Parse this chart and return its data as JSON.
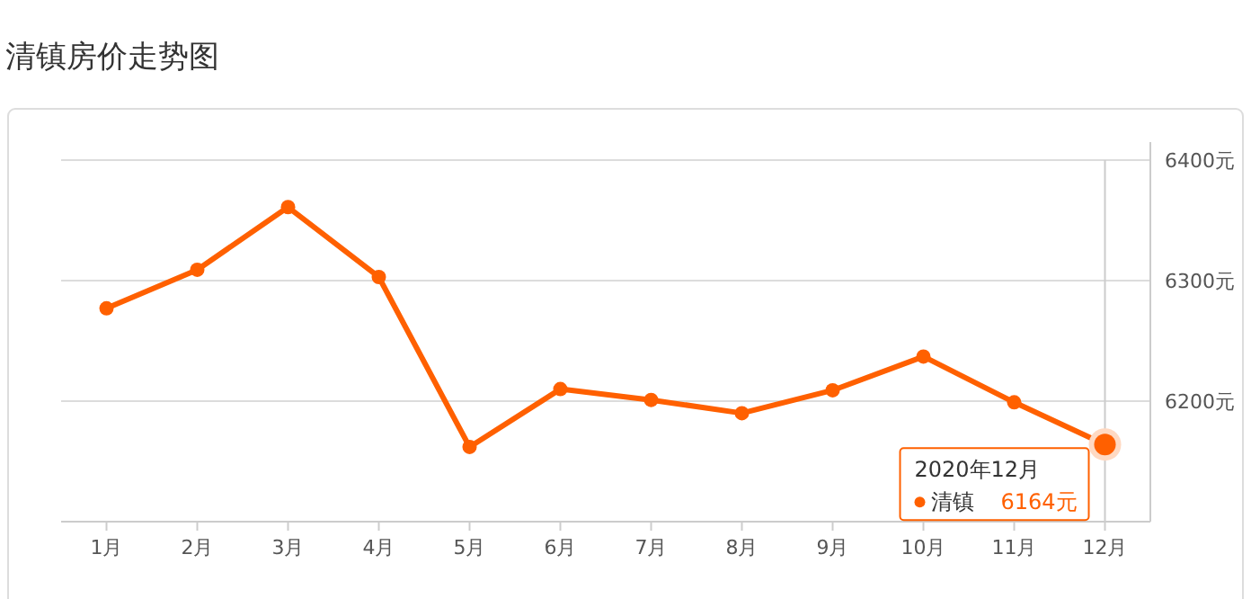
{
  "chart_data": {
    "type": "line",
    "title": "清镇房价走势图",
    "categories": [
      "1月",
      "2月",
      "3月",
      "4月",
      "5月",
      "6月",
      "7月",
      "8月",
      "9月",
      "10月",
      "11月",
      "12月"
    ],
    "series": [
      {
        "name": "清镇",
        "color": "#ff6000",
        "values": [
          6277,
          6309,
          6361,
          6303,
          6162,
          6210,
          6201,
          6190,
          6209,
          6237,
          6199,
          6164
        ],
        "value_labels": [
          null,
          null,
          null,
          null,
          null,
          null,
          null,
          null,
          null,
          null,
          null,
          "6164元"
        ]
      }
    ],
    "annotations": [
      "2020年12月"
    ],
    "ylim": [
      6100,
      6400
    ],
    "yticks": [
      {
        "value": 6100,
        "label": null
      },
      {
        "value": 6200,
        "label": "6200元"
      },
      {
        "value": 6300,
        "label": "6300元"
      },
      {
        "value": 6400,
        "label": "6400元"
      }
    ],
    "ref_lines": [
      {
        "axis": "x",
        "value": "12月",
        "color": "#cccccc"
      }
    ],
    "grid": "y",
    "marker": "circle",
    "line_style": "solid"
  }
}
